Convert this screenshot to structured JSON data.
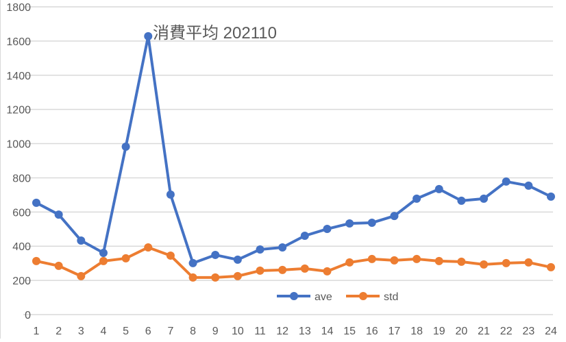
{
  "chart_data": {
    "type": "line",
    "title": "消費平均 202110",
    "xlabel": "",
    "ylabel": "",
    "categories": [
      "1",
      "2",
      "3",
      "4",
      "5",
      "6",
      "7",
      "8",
      "9",
      "10",
      "11",
      "12",
      "13",
      "14",
      "15",
      "16",
      "17",
      "18",
      "19",
      "20",
      "21",
      "22",
      "23",
      "24"
    ],
    "series": [
      {
        "name": "ave",
        "color": "#4472c4",
        "values": [
          654,
          585,
          433,
          361,
          982,
          1628,
          702,
          301,
          349,
          321,
          381,
          393,
          461,
          501,
          533,
          537,
          577,
          678,
          734,
          666,
          678,
          778,
          754,
          690
        ]
      },
      {
        "name": "std",
        "color": "#ed7d31",
        "values": [
          313,
          285,
          225,
          313,
          329,
          393,
          345,
          217,
          217,
          225,
          257,
          261,
          269,
          253,
          305,
          325,
          317,
          325,
          313,
          309,
          293,
          301,
          305,
          277
        ]
      }
    ],
    "ylim": [
      0,
      1800
    ],
    "yticks": [
      "0",
      "200",
      "400",
      "600",
      "800",
      "1000",
      "1200",
      "1400",
      "1600",
      "1800"
    ],
    "grid": true,
    "legend_position": "inside-bottom-center",
    "markers": "circle"
  }
}
